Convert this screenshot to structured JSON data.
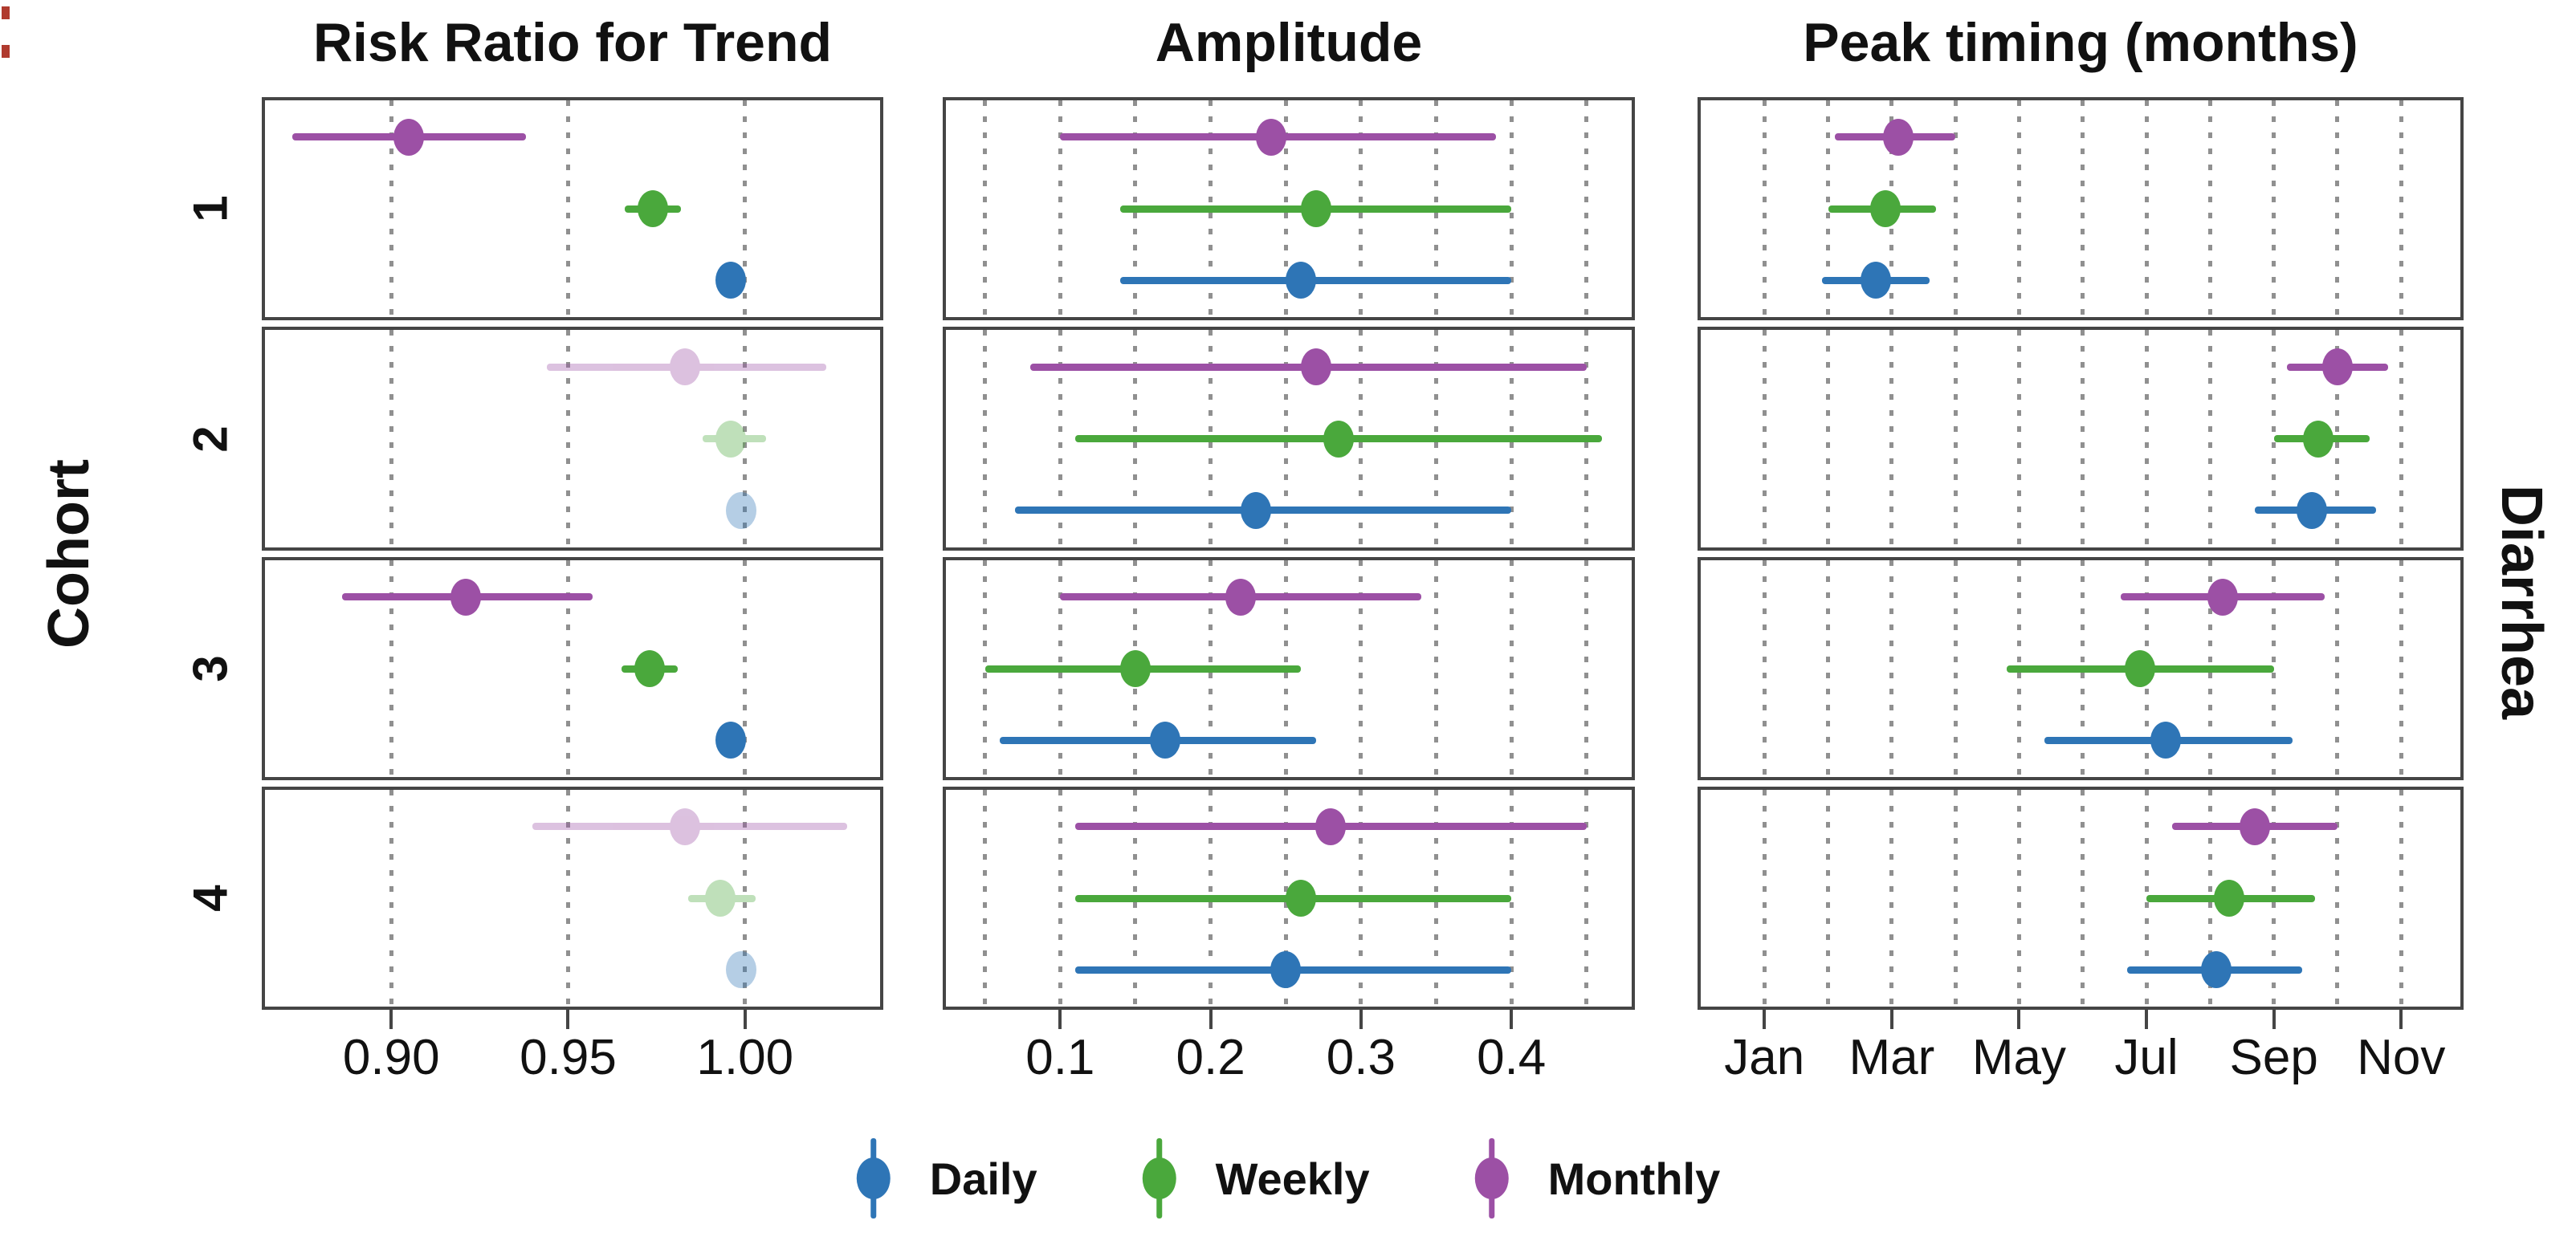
{
  "figure": {
    "left_axis_title": "Cohort",
    "right_strip_label": "Diarrhea",
    "cohorts": [
      "1",
      "2",
      "3",
      "4"
    ]
  },
  "legend": {
    "items": [
      {
        "label": "Daily",
        "color": "#2e75b6"
      },
      {
        "label": "Weekly",
        "color": "#4aa83c"
      },
      {
        "label": "Monthly",
        "color": "#9c50a5"
      }
    ]
  },
  "chart_data": {
    "type": "scatter",
    "subtype": "forest-pointrange",
    "left_axis_title": "Cohort",
    "right_strip_label": "Diarrhea",
    "categories": [
      "1",
      "2",
      "3",
      "4"
    ],
    "series_order_top_to_bottom": [
      "Monthly",
      "Weekly",
      "Daily"
    ],
    "grid": "dotted-vertical",
    "legend_position": "bottom",
    "panels": [
      {
        "title": "Risk Ratio for Trend",
        "xlim": [
          0.8643,
          1.0382
        ],
        "x_gridlines": [
          0.9,
          0.95,
          1.0
        ],
        "x_ticks": [
          0.9,
          0.95,
          1.0
        ],
        "x_tick_labels": [
          "0.90",
          "0.95",
          "1.00"
        ],
        "rows": [
          {
            "cohort": "1",
            "points": [
              {
                "series": "Monthly",
                "value": 0.905,
                "lo": 0.872,
                "hi": 0.938,
                "faded": false
              },
              {
                "series": "Weekly",
                "value": 0.974,
                "lo": 0.966,
                "hi": 0.982,
                "faded": false
              },
              {
                "series": "Daily",
                "value": 0.996,
                "lo": 0.993,
                "hi": 0.999,
                "faded": false
              }
            ]
          },
          {
            "cohort": "2",
            "points": [
              {
                "series": "Monthly",
                "value": 0.983,
                "lo": 0.944,
                "hi": 1.023,
                "faded": true
              },
              {
                "series": "Weekly",
                "value": 0.996,
                "lo": 0.988,
                "hi": 1.006,
                "faded": true
              },
              {
                "series": "Daily",
                "value": 0.999,
                "lo": 0.997,
                "hi": 1.001,
                "faded": true
              }
            ]
          },
          {
            "cohort": "3",
            "points": [
              {
                "series": "Monthly",
                "value": 0.921,
                "lo": 0.886,
                "hi": 0.957,
                "faded": false
              },
              {
                "series": "Weekly",
                "value": 0.973,
                "lo": 0.965,
                "hi": 0.981,
                "faded": false
              },
              {
                "series": "Daily",
                "value": 0.996,
                "lo": 0.994,
                "hi": 0.999,
                "faded": false
              }
            ]
          },
          {
            "cohort": "4",
            "points": [
              {
                "series": "Monthly",
                "value": 0.983,
                "lo": 0.94,
                "hi": 1.029,
                "faded": true
              },
              {
                "series": "Weekly",
                "value": 0.993,
                "lo": 0.984,
                "hi": 1.003,
                "faded": true
              },
              {
                "series": "Daily",
                "value": 0.999,
                "lo": 0.996,
                "hi": 1.001,
                "faded": true
              }
            ]
          }
        ]
      },
      {
        "title": "Amplitude",
        "xlim": [
          0.024,
          0.48
        ],
        "x_gridlines": [
          0.05,
          0.1,
          0.15,
          0.2,
          0.25,
          0.3,
          0.35,
          0.4,
          0.45
        ],
        "x_ticks": [
          0.1,
          0.2,
          0.3,
          0.4
        ],
        "x_tick_labels": [
          "0.1",
          "0.2",
          "0.3",
          "0.4"
        ],
        "rows": [
          {
            "cohort": "1",
            "points": [
              {
                "series": "Monthly",
                "value": 0.24,
                "lo": 0.1,
                "hi": 0.39,
                "faded": false
              },
              {
                "series": "Weekly",
                "value": 0.27,
                "lo": 0.14,
                "hi": 0.4,
                "faded": false
              },
              {
                "series": "Daily",
                "value": 0.26,
                "lo": 0.14,
                "hi": 0.4,
                "faded": false
              }
            ]
          },
          {
            "cohort": "2",
            "points": [
              {
                "series": "Monthly",
                "value": 0.27,
                "lo": 0.08,
                "hi": 0.45,
                "faded": false
              },
              {
                "series": "Weekly",
                "value": 0.285,
                "lo": 0.11,
                "hi": 0.46,
                "faded": false
              },
              {
                "series": "Daily",
                "value": 0.23,
                "lo": 0.07,
                "hi": 0.4,
                "faded": false
              }
            ]
          },
          {
            "cohort": "3",
            "points": [
              {
                "series": "Monthly",
                "value": 0.22,
                "lo": 0.1,
                "hi": 0.34,
                "faded": false
              },
              {
                "series": "Weekly",
                "value": 0.15,
                "lo": 0.05,
                "hi": 0.26,
                "faded": false
              },
              {
                "series": "Daily",
                "value": 0.17,
                "lo": 0.06,
                "hi": 0.27,
                "faded": false
              }
            ]
          },
          {
            "cohort": "4",
            "points": [
              {
                "series": "Monthly",
                "value": 0.28,
                "lo": 0.11,
                "hi": 0.45,
                "faded": false
              },
              {
                "series": "Weekly",
                "value": 0.26,
                "lo": 0.11,
                "hi": 0.4,
                "faded": false
              },
              {
                "series": "Daily",
                "value": 0.25,
                "lo": 0.11,
                "hi": 0.4,
                "faded": false
              }
            ]
          }
        ]
      },
      {
        "title": "Peak timing (months)",
        "x_unit": "month index (1 = Jan)",
        "xlim": [
          0.0,
          11.93
        ],
        "x_gridlines": [
          1,
          2,
          3,
          4,
          5,
          6,
          7,
          8,
          9,
          10,
          11
        ],
        "x_ticks": [
          1,
          3,
          5,
          7,
          9,
          11
        ],
        "x_tick_labels": [
          "Jan",
          "Mar",
          "May",
          "Jul",
          "Sep",
          "Nov"
        ],
        "rows": [
          {
            "cohort": "1",
            "points": [
              {
                "series": "Monthly",
                "value": 3.1,
                "lo": 2.1,
                "hi": 4.0,
                "faded": false
              },
              {
                "series": "Weekly",
                "value": 2.9,
                "lo": 2.0,
                "hi": 3.7,
                "faded": false
              },
              {
                "series": "Daily",
                "value": 2.75,
                "lo": 1.9,
                "hi": 3.6,
                "faded": false
              }
            ]
          },
          {
            "cohort": "2",
            "points": [
              {
                "series": "Monthly",
                "value": 10.0,
                "lo": 9.2,
                "hi": 10.8,
                "faded": false
              },
              {
                "series": "Weekly",
                "value": 9.7,
                "lo": 9.0,
                "hi": 10.5,
                "faded": false
              },
              {
                "series": "Daily",
                "value": 9.6,
                "lo": 8.7,
                "hi": 10.6,
                "faded": false
              }
            ]
          },
          {
            "cohort": "3",
            "points": [
              {
                "series": "Monthly",
                "value": 8.2,
                "lo": 6.6,
                "hi": 9.8,
                "faded": false
              },
              {
                "series": "Weekly",
                "value": 6.9,
                "lo": 4.8,
                "hi": 9.0,
                "faded": false
              },
              {
                "series": "Daily",
                "value": 7.3,
                "lo": 5.4,
                "hi": 9.3,
                "faded": false
              }
            ]
          },
          {
            "cohort": "4",
            "points": [
              {
                "series": "Monthly",
                "value": 8.7,
                "lo": 7.4,
                "hi": 10.0,
                "faded": false
              },
              {
                "series": "Weekly",
                "value": 8.3,
                "lo": 7.0,
                "hi": 9.65,
                "faded": false
              },
              {
                "series": "Daily",
                "value": 8.1,
                "lo": 6.7,
                "hi": 9.45,
                "faded": false
              }
            ]
          }
        ]
      }
    ]
  }
}
